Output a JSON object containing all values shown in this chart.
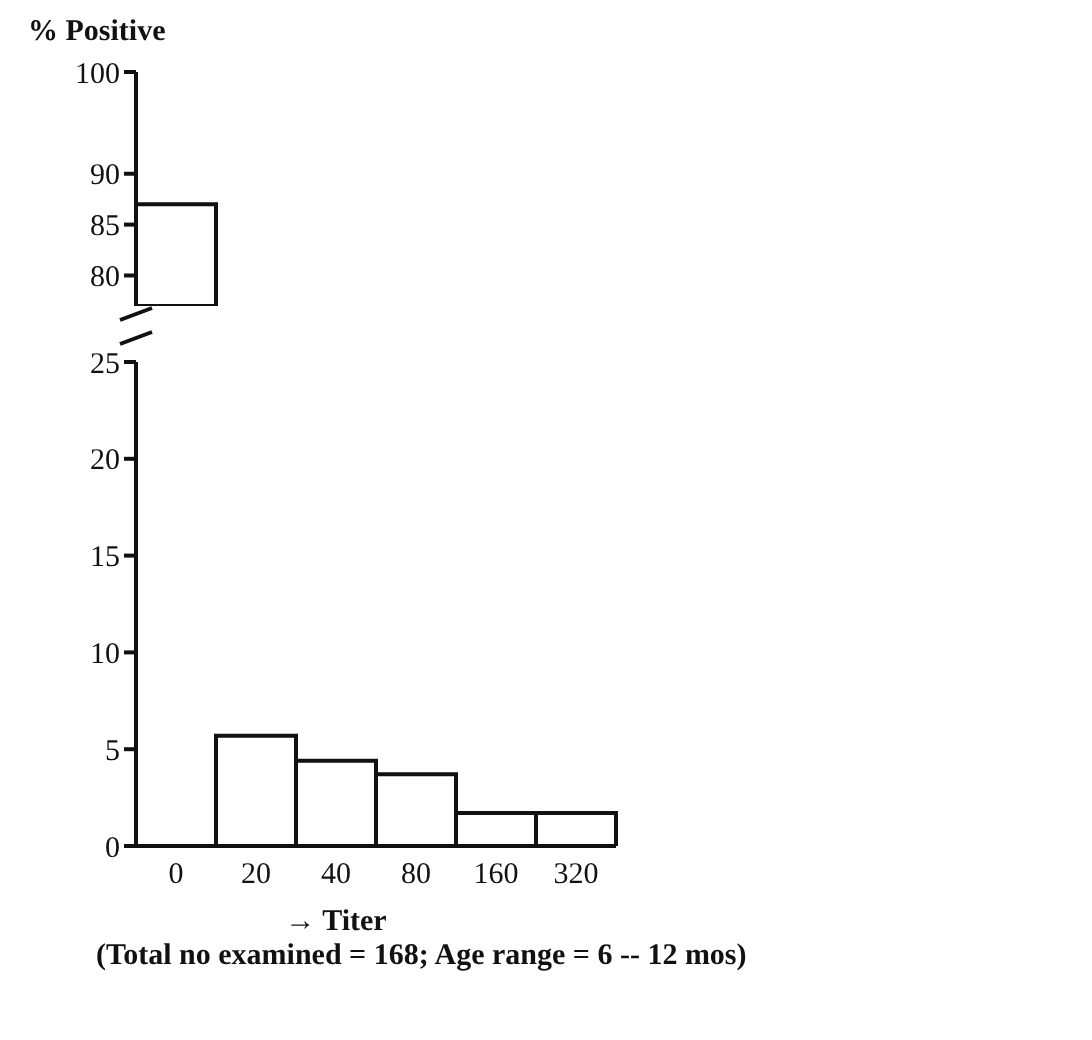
{
  "chart_data": [
    {
      "type": "bar",
      "ylabel": "% Positive",
      "categories": [
        "0",
        "20",
        "40",
        "80",
        "160",
        "320"
      ],
      "values": [
        87,
        null,
        null,
        null,
        null,
        null
      ],
      "color": "#ffffff",
      "ylim": [
        77,
        100
      ],
      "yticks": [
        80,
        85,
        90,
        100
      ],
      "tick_labels": "y"
    },
    {
      "type": "bar",
      "xlabel": "→ Titer",
      "annotations": [
        "(Total no examined = 168; Age range = 6 -- 12 mos)"
      ],
      "categories": [
        "0",
        "20",
        "40",
        "80",
        "160",
        "320"
      ],
      "values": [
        null,
        5.7,
        4.4,
        3.7,
        1.7,
        1.7
      ],
      "color": "#ffffff",
      "ylim": [
        0,
        25
      ],
      "yticks": [
        0,
        5,
        10,
        15,
        20,
        25
      ]
    }
  ]
}
